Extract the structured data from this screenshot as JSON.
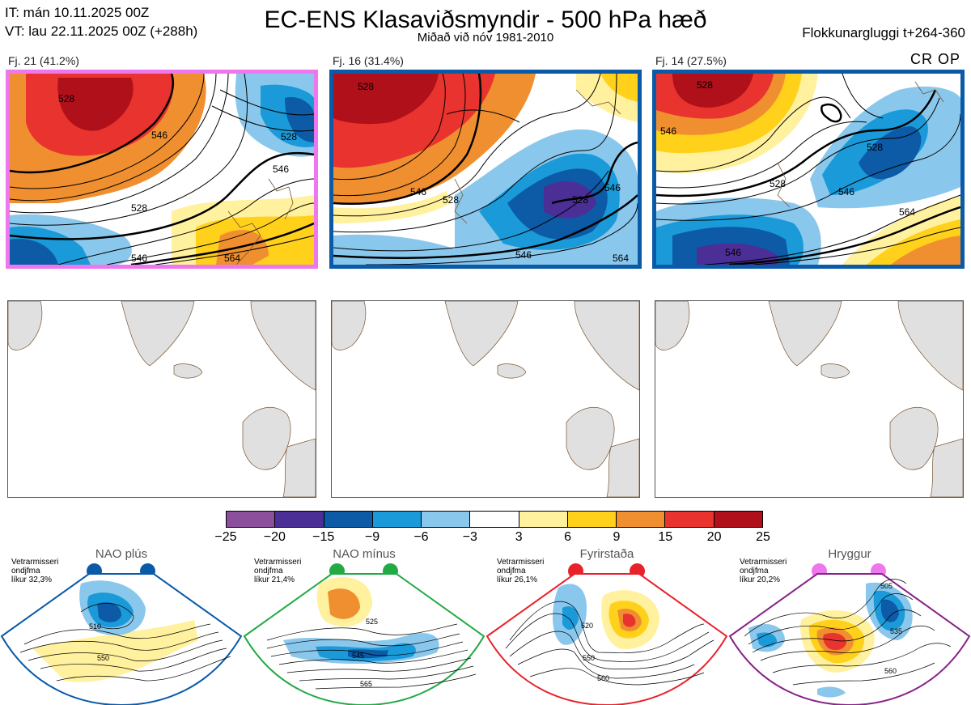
{
  "header": {
    "it_line": "IT: mán 10.11.2025 00Z",
    "vt_line": "VT: lau 22.11.2025 00Z  (+288h)",
    "title": "EC-ENS Klasaviðsmyndir - 500 hPa hæð",
    "subtitle": "Miðað við nóv 1981-2010",
    "window": "Flokkunargluggi t+264-360"
  },
  "clusters": [
    {
      "label": "Fj. 21 (41.2%)",
      "frame_color": "#ee77ee",
      "tag": ""
    },
    {
      "label": "Fj. 16 (31.4%)",
      "frame_color": "#0a5aa8",
      "tag": ""
    },
    {
      "label": "Fj. 14 (27.5%)",
      "frame_color": "#0a5aa8",
      "tag": "CR OP"
    }
  ],
  "contour_labels": {
    "c1": [
      "528",
      "546",
      "528",
      "546",
      "528",
      "546",
      "564"
    ],
    "c2": [
      "528",
      "546",
      "528",
      "546",
      "528",
      "546",
      "564"
    ],
    "c3": [
      "528",
      "546",
      "528",
      "546",
      "564",
      "528",
      "546"
    ]
  },
  "colorbar": {
    "colors": [
      "#8b4f9c",
      "#4b2e96",
      "#0d5aa7",
      "#1a9ad8",
      "#8ac7ec",
      "#ffffff",
      "#fff19d",
      "#ffd11a",
      "#f08f2f",
      "#e8332e",
      "#b0101a"
    ],
    "ticks": [
      "−25",
      "−20",
      "−15",
      "−9",
      "−6",
      "−3",
      "3",
      "6",
      "9",
      "15",
      "20",
      "25"
    ]
  },
  "regimes": [
    {
      "name": "NAO plús",
      "note": [
        "Vetrarmisseri",
        "ondjfma",
        "líkur 32,3%"
      ],
      "dot_color": "#0a5aa8",
      "frame_color": "#0a5aa8",
      "labels": [
        "510",
        "550"
      ]
    },
    {
      "name": "NAO mínus",
      "note": [
        "Vetrarmisseri",
        "ondjfma",
        "líkur 21,4%"
      ],
      "dot_color": "#22aa44",
      "frame_color": "#22aa44",
      "labels": [
        "525",
        "545",
        "565"
      ]
    },
    {
      "name": "Fyrirstaða",
      "note": [
        "Vetrarmisseri",
        "ondjfma",
        "líkur 26,1%"
      ],
      "dot_color": "#e8222a",
      "frame_color": "#e8222a",
      "labels": [
        "520",
        "550",
        "560"
      ]
    },
    {
      "name": "Hryggur",
      "note": [
        "Vetrarmisseri",
        "ondjfma",
        "líkur 20,2%"
      ],
      "dot_color": "#ee77ee",
      "frame_color": "#882288",
      "labels": [
        "505",
        "535",
        "560"
      ]
    }
  ]
}
